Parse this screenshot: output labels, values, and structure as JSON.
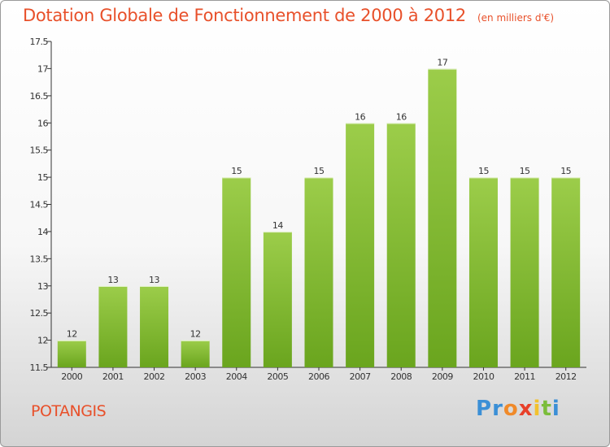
{
  "chart_data": {
    "type": "bar",
    "title": "Dotation Globale de Fonctionnement de 2000 à 2012",
    "subtitle": "(en milliers d'€)",
    "categories": [
      "2000",
      "2001",
      "2002",
      "2003",
      "2004",
      "2005",
      "2006",
      "2007",
      "2008",
      "2009",
      "2010",
      "2011",
      "2012"
    ],
    "values": [
      12,
      13,
      13,
      12,
      15,
      14,
      15,
      16,
      16,
      17,
      15,
      15,
      15
    ],
    "value_labels": [
      "12",
      "13",
      "13",
      "12",
      "15",
      "14",
      "15",
      "16",
      "16",
      "17",
      "15",
      "15",
      "15"
    ],
    "xlabel": "",
    "ylabel": "",
    "ylim": [
      11.5,
      17.5
    ],
    "yticks": [
      "11.5",
      "12",
      "12.5",
      "13",
      "13.5",
      "14",
      "14.5",
      "15",
      "15.5",
      "16",
      "16.5",
      "17",
      "17.5"
    ],
    "grid": false,
    "bar_color_top": "#9ccd4a",
    "bar_color_bottom": "#6aa51e"
  },
  "commune": "POTANGIS",
  "brand": {
    "letters": [
      "P",
      "r",
      "o",
      "x",
      "i",
      "t",
      "i"
    ],
    "colors": [
      "#3b8fd6",
      "#3b8fd6",
      "#f08a2a",
      "#e8402a",
      "#f2c12e",
      "#7bbd3a",
      "#3b8fd6"
    ]
  },
  "colors": {
    "accent": "#e8502a",
    "axis": "#333333"
  }
}
